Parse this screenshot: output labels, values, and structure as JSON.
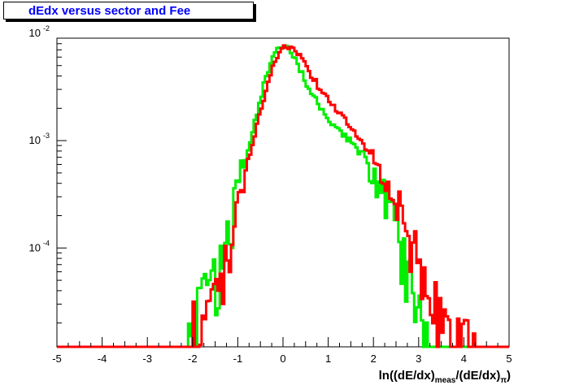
{
  "title": "dEdx versus sector and Fee",
  "chart_data": {
    "type": "line",
    "title": "dEdx versus sector and Fee",
    "xlabel": "ln((dE/dx)meas/(dE/dx)π)",
    "xlabel_parts": {
      "main": "ln((dE/dx)",
      "sub1": "meas",
      "mid": "/(dE/dx)",
      "sub2": "π",
      "end": ")"
    },
    "ylabel": "",
    "xlim": [
      -5,
      5
    ],
    "ylim": [
      1.2e-05,
      0.009
    ],
    "yscale": "log",
    "x_ticks": [
      "-5",
      "-4",
      "-3",
      "-2",
      "-1",
      "0",
      "1",
      "2",
      "3",
      "4",
      "5"
    ],
    "y_ticks": [
      {
        "value": 0.01,
        "base": "10",
        "exp": "-2"
      },
      {
        "value": 0.001,
        "base": "10",
        "exp": "-3"
      },
      {
        "value": 0.0001,
        "base": "10",
        "exp": "-4"
      }
    ],
    "grid": false,
    "legend": "none",
    "bin_width": 0.05,
    "series": [
      {
        "color": "#00ee00",
        "profile": [
          [
            -2.2,
            2e-05
          ],
          [
            -1.5,
            5e-05
          ],
          [
            -1.2,
            0.00012
          ],
          [
            -1.0,
            0.0004
          ],
          [
            -0.7,
            0.0011
          ],
          [
            -0.5,
            0.0025
          ],
          [
            -0.3,
            0.005
          ],
          [
            -0.15,
            0.0072
          ],
          [
            0.0,
            0.0079
          ],
          [
            0.15,
            0.0071
          ],
          [
            0.3,
            0.0055
          ],
          [
            0.5,
            0.0035
          ],
          [
            0.8,
            0.0021
          ],
          [
            1.0,
            0.0016
          ],
          [
            1.3,
            0.0012
          ],
          [
            1.6,
            0.0009
          ],
          [
            2.0,
            0.0005
          ],
          [
            2.3,
            0.00028
          ],
          [
            2.6,
            0.00012
          ],
          [
            2.8,
            6e-05
          ],
          [
            3.0,
            2.5e-05
          ],
          [
            3.2,
            1.2e-05
          ]
        ]
      },
      {
        "color": "#ff0000",
        "profile": [
          [
            -2.0,
            2.5e-05
          ],
          [
            -1.5,
            4e-05
          ],
          [
            -1.2,
            0.0001
          ],
          [
            -1.0,
            0.00025
          ],
          [
            -0.7,
            0.0008
          ],
          [
            -0.5,
            0.0019
          ],
          [
            -0.3,
            0.0038
          ],
          [
            -0.15,
            0.0058
          ],
          [
            0.0,
            0.0073
          ],
          [
            0.12,
            0.0077
          ],
          [
            0.3,
            0.0068
          ],
          [
            0.5,
            0.005
          ],
          [
            0.8,
            0.0031
          ],
          [
            1.0,
            0.0024
          ],
          [
            1.3,
            0.0017
          ],
          [
            1.6,
            0.0012
          ],
          [
            2.0,
            0.0007
          ],
          [
            2.3,
            0.0004
          ],
          [
            2.6,
            0.00022
          ],
          [
            2.9,
            0.0001
          ],
          [
            3.2,
            4e-05
          ],
          [
            3.6,
            2e-05
          ],
          [
            4.0,
            1.8e-05
          ],
          [
            4.3,
            1.2e-05
          ]
        ]
      }
    ]
  }
}
